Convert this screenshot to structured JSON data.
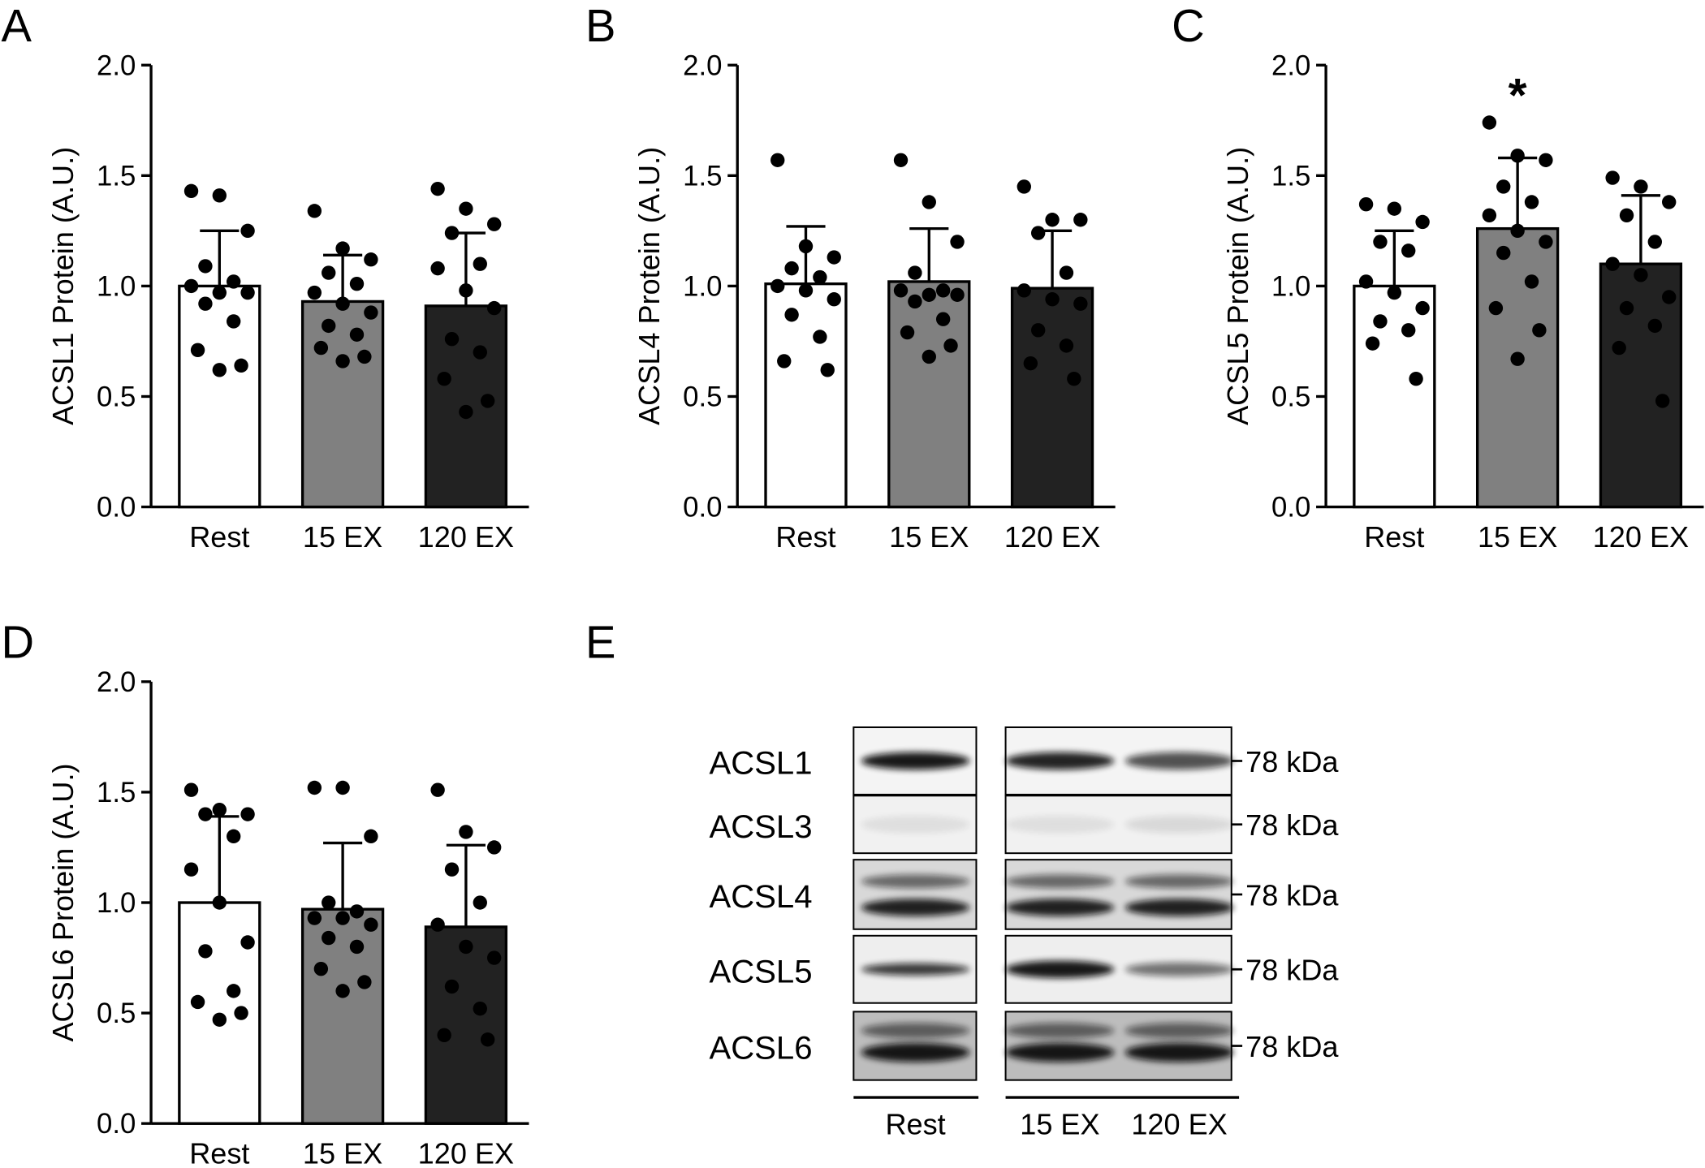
{
  "chart_data": [
    {
      "type": "bar",
      "panel": "A",
      "ylabel": "ACSL1 Protein (A.U.)",
      "categories": [
        "Rest",
        "15 EX",
        "120 EX"
      ],
      "values": [
        1.0,
        0.93,
        0.91
      ],
      "errors": [
        0.25,
        0.21,
        0.33
      ],
      "colors": [
        "#ffffff",
        "#808080",
        "#222222"
      ],
      "points": [
        [
          1.43,
          1.41,
          1.25,
          1.09,
          1.02,
          1.0,
          0.97,
          0.97,
          0.92,
          0.84,
          0.71,
          0.64,
          0.62
        ],
        [
          1.34,
          1.17,
          1.12,
          1.06,
          1.01,
          0.97,
          0.92,
          0.88,
          0.82,
          0.78,
          0.72,
          0.68,
          0.66
        ],
        [
          1.44,
          1.35,
          1.28,
          1.24,
          1.1,
          1.08,
          0.98,
          0.9,
          0.76,
          0.7,
          0.58,
          0.48,
          0.43
        ]
      ],
      "ylim": [
        0,
        2
      ],
      "yticks": [
        {
          "value": 0,
          "label": "0.0"
        },
        {
          "value": 0.5,
          "label": "0.5"
        },
        {
          "value": 1,
          "label": "1.0"
        },
        {
          "value": 1.5,
          "label": "1.5"
        },
        {
          "value": 2,
          "label": "2.0"
        }
      ]
    },
    {
      "type": "bar",
      "panel": "B",
      "ylabel": "ACSL4 Protein (A.U.)",
      "categories": [
        "Rest",
        "15 EX",
        "120 EX"
      ],
      "values": [
        1.01,
        1.02,
        0.99
      ],
      "errors": [
        0.26,
        0.24,
        0.26
      ],
      "colors": [
        "#ffffff",
        "#808080",
        "#222222"
      ],
      "points": [
        [
          1.57,
          1.18,
          1.13,
          1.08,
          1.04,
          1.0,
          0.98,
          0.94,
          0.87,
          0.77,
          0.66,
          0.62
        ],
        [
          1.57,
          1.38,
          1.2,
          1.06,
          0.98,
          0.98,
          0.96,
          0.96,
          0.93,
          0.85,
          0.79,
          0.73,
          0.68
        ],
        [
          1.45,
          1.3,
          1.3,
          1.24,
          1.06,
          0.98,
          0.94,
          0.92,
          0.8,
          0.73,
          0.65,
          0.58
        ]
      ],
      "ylim": [
        0,
        2
      ],
      "yticks": [
        {
          "value": 0,
          "label": "0.0"
        },
        {
          "value": 0.5,
          "label": "0.5"
        },
        {
          "value": 1,
          "label": "1.0"
        },
        {
          "value": 1.5,
          "label": "1.5"
        },
        {
          "value": 2,
          "label": "2.0"
        }
      ]
    },
    {
      "type": "bar",
      "panel": "C",
      "ylabel": "ACSL5 Protein (A.U.)",
      "categories": [
        "Rest",
        "15 EX",
        "120 EX"
      ],
      "values": [
        1.0,
        1.26,
        1.1
      ],
      "errors": [
        0.25,
        0.32,
        0.31
      ],
      "colors": [
        "#ffffff",
        "#808080",
        "#222222"
      ],
      "significance": [
        null,
        "*",
        null
      ],
      "points": [
        [
          1.37,
          1.35,
          1.29,
          1.2,
          1.16,
          1.02,
          0.97,
          0.9,
          0.84,
          0.8,
          0.74,
          0.58
        ],
        [
          1.74,
          1.59,
          1.57,
          1.45,
          1.38,
          1.32,
          1.25,
          1.2,
          1.15,
          1.02,
          0.9,
          0.8,
          0.67
        ],
        [
          1.49,
          1.45,
          1.38,
          1.32,
          1.2,
          1.1,
          1.05,
          0.95,
          0.9,
          0.82,
          0.72,
          0.48
        ]
      ],
      "ylim": [
        0,
        2
      ],
      "yticks": [
        {
          "value": 0,
          "label": "0.0"
        },
        {
          "value": 0.5,
          "label": "0.5"
        },
        {
          "value": 1,
          "label": "1.0"
        },
        {
          "value": 1.5,
          "label": "1.5"
        },
        {
          "value": 2,
          "label": "2.0"
        }
      ]
    },
    {
      "type": "bar",
      "panel": "D",
      "ylabel": "ACSL6 Protein (A.U.)",
      "categories": [
        "Rest",
        "15 EX",
        "120 EX"
      ],
      "values": [
        1.0,
        0.97,
        0.89
      ],
      "errors": [
        0.39,
        0.3,
        0.37
      ],
      "colors": [
        "#ffffff",
        "#808080",
        "#222222"
      ],
      "points": [
        [
          1.51,
          1.42,
          1.4,
          1.4,
          1.3,
          1.15,
          1.0,
          0.82,
          0.78,
          0.6,
          0.55,
          0.5,
          0.47
        ],
        [
          1.52,
          1.52,
          1.3,
          1.0,
          0.96,
          0.93,
          0.93,
          0.9,
          0.84,
          0.8,
          0.7,
          0.64,
          0.6
        ],
        [
          1.51,
          1.32,
          1.25,
          1.15,
          1.0,
          0.9,
          0.8,
          0.75,
          0.62,
          0.52,
          0.4,
          0.38
        ]
      ],
      "ylim": [
        0,
        2
      ],
      "yticks": [
        {
          "value": 0,
          "label": "0.0"
        },
        {
          "value": 0.5,
          "label": "0.5"
        },
        {
          "value": 1,
          "label": "1.0"
        },
        {
          "value": 1.5,
          "label": "1.5"
        },
        {
          "value": 2,
          "label": "2.0"
        }
      ]
    }
  ],
  "blot": {
    "panel": "E",
    "rows": [
      {
        "label": "ACSL1",
        "size": "78 kDa"
      },
      {
        "label": "ACSL3",
        "size": "78 kDa"
      },
      {
        "label": "ACSL4",
        "size": "78 kDa"
      },
      {
        "label": "ACSL5",
        "size": "78 kDa"
      },
      {
        "label": "ACSL6",
        "size": "78 kDa"
      }
    ],
    "groups": [
      "Rest",
      "15 EX",
      "120 EX"
    ]
  }
}
